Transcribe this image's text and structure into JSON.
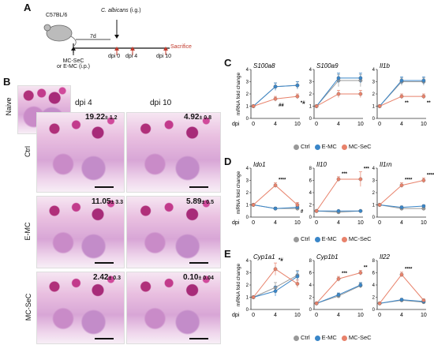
{
  "panelA": {
    "label": "A",
    "strain": "C57BL/6",
    "treatment": "MC-SeC\nor E-MC (i.p.)",
    "treatment_l1": "MC-SeC",
    "treatment_l2": "or E-MC (i.p.)",
    "infection": "C. albicans (i.g.)",
    "infection_italic": "C. albicans",
    "infection_rest": " (i.g.)",
    "interval": "7d",
    "timepoints": [
      "dpi 0",
      "dpi 4",
      "dpi 10"
    ],
    "sacrifice": "Sacrifice",
    "sacrifice_color": "#c0392b"
  },
  "panelB": {
    "label": "B",
    "naive": "Naive",
    "col_headers": [
      "dpi 4",
      "dpi 10"
    ],
    "rows": [
      {
        "label": "Ctrl",
        "values": [
          {
            "v": "19.22",
            "e": "± 1.2"
          },
          {
            "v": "4.92",
            "e": "± 0.8"
          }
        ]
      },
      {
        "label": "E-MC",
        "values": [
          {
            "v": "11.05",
            "e": "± 3.3"
          },
          {
            "v": "5.89",
            "e": "± 0.5"
          }
        ]
      },
      {
        "label": "MC-SeC",
        "values": [
          {
            "v": "2.42",
            "e": "± 0.3"
          },
          {
            "v": "0.10",
            "e": "± 0.04"
          }
        ]
      }
    ]
  },
  "colors": {
    "Ctrl": "#999999",
    "E-MC": "#3a86c8",
    "MC-SeC": "#e8826b"
  },
  "chart_data": [
    {
      "panel": "C",
      "type": "line",
      "title": "S100a8",
      "ylabel": "mRNA fold change",
      "xlabel": "dpi",
      "x": [
        0,
        4,
        10
      ],
      "ylim": [
        0,
        4
      ],
      "yticks": [
        0,
        1,
        2,
        3,
        4
      ],
      "series": [
        {
          "name": "Ctrl",
          "values": [
            1.0,
            2.6,
            2.7
          ],
          "err": [
            0.1,
            0.3,
            0.3
          ]
        },
        {
          "name": "E-MC",
          "values": [
            1.0,
            2.6,
            2.7
          ],
          "err": [
            0.1,
            0.3,
            0.3
          ]
        },
        {
          "name": "MC-SeC",
          "values": [
            1.0,
            1.6,
            1.8
          ],
          "err": [
            0.1,
            0.2,
            0.2
          ]
        }
      ],
      "annotations": [
        {
          "x": 4,
          "text": "##"
        },
        {
          "x": 10,
          "text": "*#"
        }
      ]
    },
    {
      "panel": "C",
      "type": "line",
      "title": "S100a9",
      "ylabel": "",
      "xlabel": "",
      "x": [
        0,
        4,
        10
      ],
      "ylim": [
        0,
        4
      ],
      "yticks": [
        0,
        1,
        2,
        3,
        4
      ],
      "series": [
        {
          "name": "Ctrl",
          "values": [
            1.0,
            3.1,
            3.1
          ],
          "err": [
            0.1,
            0.5,
            0.5
          ]
        },
        {
          "name": "E-MC",
          "values": [
            1.0,
            3.3,
            3.3
          ],
          "err": [
            0.1,
            0.4,
            0.4
          ]
        },
        {
          "name": "MC-SeC",
          "values": [
            1.0,
            2.0,
            2.0
          ],
          "err": [
            0.1,
            0.3,
            0.3
          ]
        }
      ],
      "annotations": []
    },
    {
      "panel": "C",
      "type": "line",
      "title": "Il1b",
      "ylabel": "",
      "xlabel": "",
      "x": [
        0,
        4,
        10
      ],
      "ylim": [
        0,
        4
      ],
      "yticks": [
        0,
        1,
        2,
        3,
        4
      ],
      "series": [
        {
          "name": "Ctrl",
          "values": [
            1.0,
            3.0,
            3.0
          ],
          "err": [
            0.1,
            0.3,
            0.3
          ]
        },
        {
          "name": "E-MC",
          "values": [
            1.0,
            3.1,
            3.1
          ],
          "err": [
            0.1,
            0.3,
            0.3
          ]
        },
        {
          "name": "MC-SeC",
          "values": [
            1.0,
            1.8,
            1.8
          ],
          "err": [
            0.1,
            0.2,
            0.2
          ]
        }
      ],
      "annotations": [
        {
          "x": 4,
          "text": "**"
        },
        {
          "x": 10,
          "text": "**"
        }
      ]
    },
    {
      "panel": "D",
      "type": "line",
      "title": "Ido1",
      "ylabel": "mRNA fold change",
      "xlabel": "dpi",
      "x": [
        0,
        4,
        10
      ],
      "ylim": [
        0,
        4
      ],
      "yticks": [
        0,
        1,
        2,
        3,
        4
      ],
      "series": [
        {
          "name": "Ctrl",
          "values": [
            1.0,
            0.7,
            0.7
          ],
          "err": [
            0.1,
            0.1,
            0.1
          ]
        },
        {
          "name": "E-MC",
          "values": [
            1.0,
            0.7,
            0.8
          ],
          "err": [
            0.1,
            0.1,
            0.1
          ]
        },
        {
          "name": "MC-SeC",
          "values": [
            1.0,
            2.6,
            1.0
          ],
          "err": [
            0.1,
            0.2,
            0.2
          ]
        }
      ],
      "annotations": [
        {
          "x": 4,
          "text": "****"
        },
        {
          "x": 10,
          "text": "#"
        }
      ]
    },
    {
      "panel": "D",
      "type": "line",
      "title": "Il10",
      "ylabel": "",
      "xlabel": "",
      "x": [
        0,
        4,
        10
      ],
      "ylim": [
        0,
        8
      ],
      "yticks": [
        0,
        2,
        4,
        6,
        8
      ],
      "series": [
        {
          "name": "Ctrl",
          "values": [
            1.0,
            0.8,
            1.0
          ],
          "err": [
            0.1,
            0.1,
            0.1
          ]
        },
        {
          "name": "E-MC",
          "values": [
            1.0,
            1.0,
            1.0
          ],
          "err": [
            0.1,
            0.1,
            0.1
          ]
        },
        {
          "name": "MC-SeC",
          "values": [
            1.0,
            6.2,
            6.2
          ],
          "err": [
            0.1,
            0.4,
            1.2
          ]
        }
      ],
      "annotations": [
        {
          "x": 4,
          "text": "***"
        },
        {
          "x": 10,
          "text": "***"
        }
      ]
    },
    {
      "panel": "D",
      "type": "line",
      "title": "Il1rn",
      "ylabel": "",
      "xlabel": "",
      "x": [
        0,
        4,
        10
      ],
      "ylim": [
        0,
        4
      ],
      "yticks": [
        0,
        1,
        2,
        3,
        4
      ],
      "series": [
        {
          "name": "Ctrl",
          "values": [
            1.0,
            0.7,
            0.7
          ],
          "err": [
            0.1,
            0.1,
            0.1
          ]
        },
        {
          "name": "E-MC",
          "values": [
            1.0,
            0.8,
            0.9
          ],
          "err": [
            0.1,
            0.1,
            0.1
          ]
        },
        {
          "name": "MC-SeC",
          "values": [
            1.0,
            2.6,
            3.0
          ],
          "err": [
            0.1,
            0.2,
            0.2
          ]
        }
      ],
      "annotations": [
        {
          "x": 4,
          "text": "****"
        },
        {
          "x": 10,
          "text": "****"
        }
      ]
    },
    {
      "panel": "E",
      "type": "line",
      "title": "Cyp1a1",
      "ylabel": "mRNA fold change",
      "xlabel": "dpi",
      "x": [
        0,
        4,
        10
      ],
      "ylim": [
        0,
        4
      ],
      "yticks": [
        0,
        1,
        2,
        3,
        4
      ],
      "series": [
        {
          "name": "Ctrl",
          "values": [
            1.0,
            1.8,
            2.8
          ],
          "err": [
            0.1,
            0.4,
            0.4
          ]
        },
        {
          "name": "E-MC",
          "values": [
            1.0,
            1.5,
            2.7
          ],
          "err": [
            0.1,
            0.4,
            0.4
          ]
        },
        {
          "name": "MC-SeC",
          "values": [
            1.0,
            3.3,
            2.1
          ],
          "err": [
            0.1,
            0.5,
            0.3
          ]
        }
      ],
      "annotations": [
        {
          "x": 4,
          "text": "*#"
        }
      ]
    },
    {
      "panel": "E",
      "type": "line",
      "title": "Cyp1b1",
      "ylabel": "",
      "xlabel": "",
      "x": [
        0,
        4,
        10
      ],
      "ylim": [
        0,
        8
      ],
      "yticks": [
        0,
        2,
        4,
        6,
        8
      ],
      "series": [
        {
          "name": "Ctrl",
          "values": [
            1.0,
            2.2,
            3.9
          ],
          "err": [
            0.1,
            0.3,
            0.4
          ]
        },
        {
          "name": "E-MC",
          "values": [
            1.0,
            2.4,
            4.0
          ],
          "err": [
            0.1,
            0.3,
            0.4
          ]
        },
        {
          "name": "MC-SeC",
          "values": [
            1.0,
            5.0,
            6.0
          ],
          "err": [
            0.1,
            0.4,
            0.4
          ]
        }
      ],
      "annotations": [
        {
          "x": 4,
          "text": "***"
        },
        {
          "x": 10,
          "text": "**"
        }
      ]
    },
    {
      "panel": "E",
      "type": "line",
      "title": "Il22",
      "ylabel": "",
      "xlabel": "",
      "x": [
        0,
        4,
        10
      ],
      "ylim": [
        0,
        8
      ],
      "yticks": [
        0,
        2,
        4,
        6,
        8
      ],
      "series": [
        {
          "name": "Ctrl",
          "values": [
            1.0,
            1.5,
            1.2
          ],
          "err": [
            0.1,
            0.2,
            0.2
          ]
        },
        {
          "name": "E-MC",
          "values": [
            1.0,
            1.6,
            1.3
          ],
          "err": [
            0.1,
            0.2,
            0.2
          ]
        },
        {
          "name": "MC-SeC",
          "values": [
            1.0,
            5.7,
            1.5
          ],
          "err": [
            0.1,
            0.4,
            0.2
          ]
        }
      ],
      "annotations": [
        {
          "x": 4,
          "text": "****"
        }
      ]
    }
  ],
  "legend": [
    "Ctrl",
    "E-MC",
    "MC-SeC"
  ],
  "panel_labels": {
    "C": "C",
    "D": "D",
    "E": "E"
  },
  "axis": {
    "ylabel": "mRNA fold change",
    "xlabel": "dpi",
    "xticks": [
      "0",
      "4",
      "10"
    ]
  }
}
